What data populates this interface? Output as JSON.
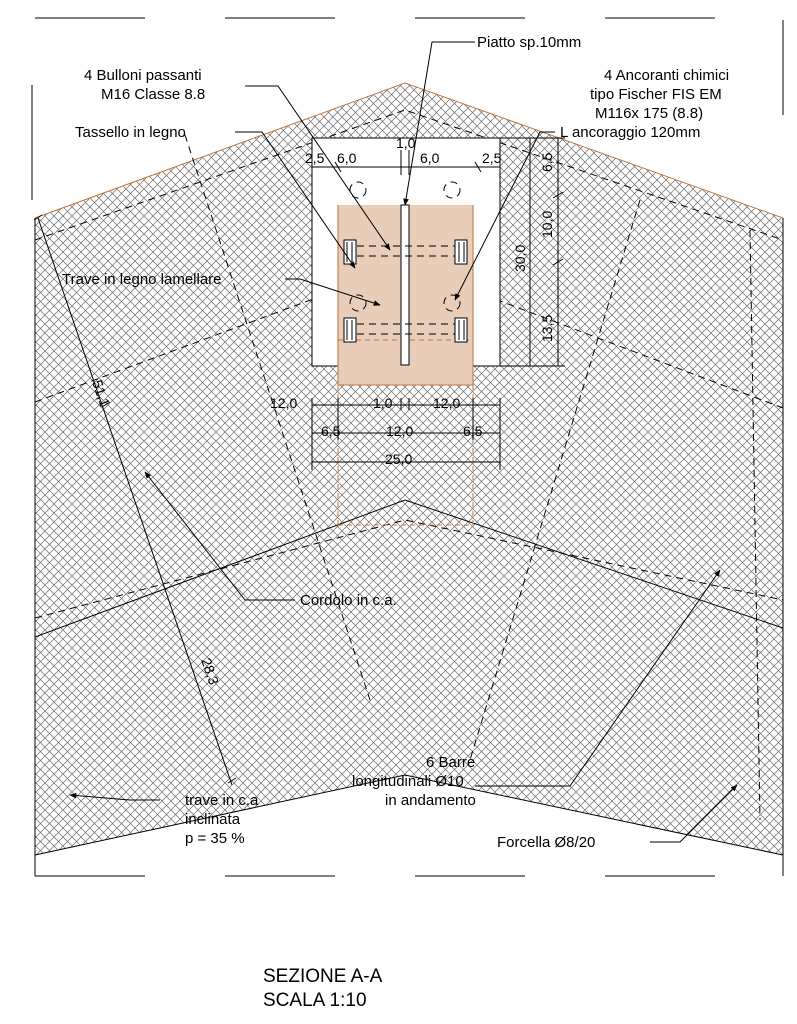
{
  "title": {
    "line1": "SEZIONE A-A",
    "line2": "SCALA 1:10"
  },
  "labels": {
    "piatto": "Piatto sp.10mm",
    "bulloni_1": "4 Bulloni passanti",
    "bulloni_2": "M16 Classe 8.8",
    "ancoranti_1": "4 Ancoranti  chimici",
    "ancoranti_2": "tipo Fischer FIS EM",
    "ancoranti_3": "M116x 175 (8.8)",
    "ancoranti_4": "L ancoraggio 120mm",
    "tassello": "Tassello in legno",
    "trave_legno": "Trave in legno lamellare",
    "cordolo": "Cordolo in c.a.",
    "barre_1": "6 Barre",
    "barre_2": "longitudinali Ø10",
    "barre_3": "in andamento",
    "trave_ca_1": "trave in c.a",
    "trave_ca_2": "inclinata",
    "trave_ca_3": "p = 35 %",
    "forcella": "Forcella Ø8/20"
  },
  "dimensions": {
    "d_top_1": "1,0",
    "d_top_25a": "2,5",
    "d_top_60a": "6,0",
    "d_top_60b": "6,0",
    "d_top_25b": "2,5",
    "d_v_65": "6,5",
    "d_v_100": "10,0",
    "d_v_300": "30,0",
    "d_v_135": "13,5",
    "d_b_120a": "12,0",
    "d_b_10": "1,0",
    "d_b_120b": "12,0",
    "d_b_65a": "6,5",
    "d_b_120c": "12,0",
    "d_b_65b": "6,5",
    "d_b_250": "25,0",
    "d_511": "51,1",
    "d_283": "28,3"
  },
  "colors": {
    "line": "#000000",
    "hatch": "#6a6a6a",
    "wood_fill": "#e8cdb8",
    "brown_line": "#c0733a"
  }
}
